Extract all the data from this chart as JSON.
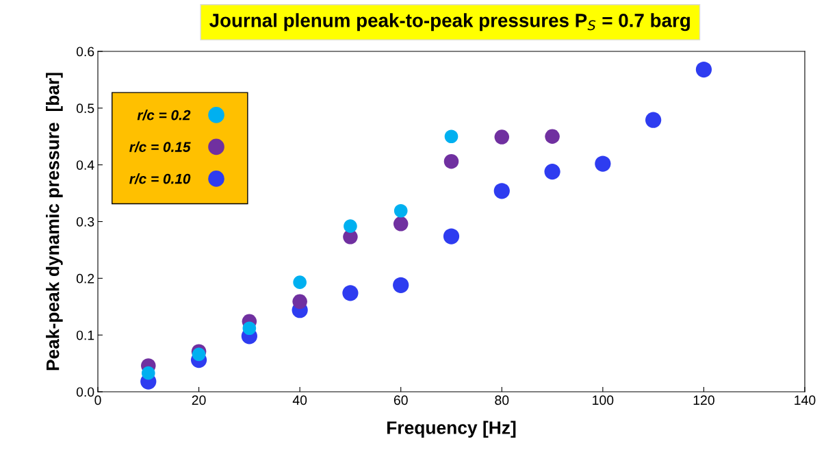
{
  "chart_data": {
    "type": "scatter",
    "title": "Journal plenum peak-to-peak pressures P$_{S}$ = 0.7 barg",
    "xlabel": "Frequency [Hz]",
    "ylabel": "Peak-peak dynamic pressure  [bar]",
    "series": [
      {
        "name": "r/c = 0.2",
        "color": "#00b0f0",
        "x": [
          10,
          20,
          30,
          40,
          50,
          60,
          70
        ],
        "values": [
          0.033,
          0.066,
          0.112,
          0.193,
          0.292,
          0.319,
          0.45
        ]
      },
      {
        "name": "r/c = 0.15",
        "color": "#7030a0",
        "x": [
          10,
          20,
          30,
          40,
          50,
          60,
          70,
          80,
          90
        ],
        "values": [
          0.046,
          0.071,
          0.124,
          0.159,
          0.273,
          0.296,
          0.406,
          0.449,
          0.45
        ]
      },
      {
        "name": "r/c = 0.10",
        "color": "#2e3cf0",
        "x": [
          10,
          20,
          30,
          40,
          50,
          60,
          70,
          80,
          90,
          100,
          110,
          120
        ],
        "values": [
          0.018,
          0.056,
          0.098,
          0.144,
          0.174,
          0.188,
          0.274,
          0.354,
          0.388,
          0.402,
          0.479,
          0.568
        ]
      }
    ],
    "xlim": [
      0,
      140
    ],
    "xticks": [
      0,
      20,
      40,
      60,
      80,
      100,
      120,
      140
    ],
    "ylim": [
      0,
      0.6
    ],
    "yticks": [
      {
        "value": 0,
        "label": "0.0"
      },
      0.1,
      0.2,
      0.3,
      0.4,
      0.5,
      0.6
    ],
    "marker": "circle",
    "grid": false,
    "legend": "top left"
  }
}
